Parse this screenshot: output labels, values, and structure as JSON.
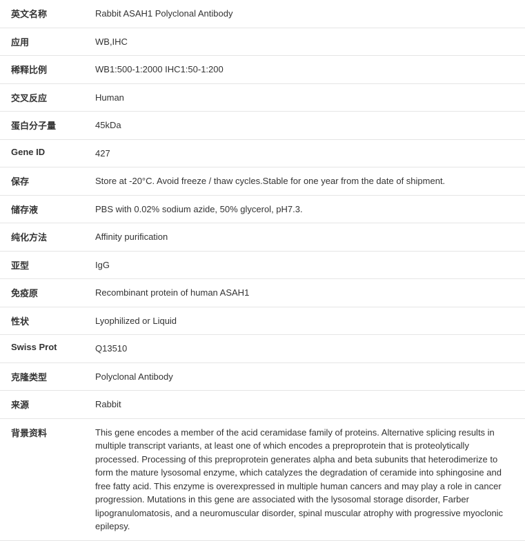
{
  "table": {
    "border_color": "#e5e5e5",
    "background_color": "#ffffff",
    "text_color": "#333333",
    "label_fontsize": 13,
    "value_fontsize": 13,
    "label_fontweight": "bold",
    "label_width": 130,
    "rows": [
      {
        "label": "英文名称",
        "value": "Rabbit ASAH1 Polyclonal Antibody"
      },
      {
        "label": "应用",
        "value": "WB,IHC"
      },
      {
        "label": "稀释比例",
        "value": "WB1:500-1:2000 IHC1:50-1:200"
      },
      {
        "label": "交叉反应",
        "value": "Human"
      },
      {
        "label": "蛋白分子量",
        "value": "45kDa"
      },
      {
        "label": "Gene ID",
        "value": "427"
      },
      {
        "label": "保存",
        "value": "Store at -20°C. Avoid freeze / thaw cycles.Stable for one year from the date of shipment."
      },
      {
        "label": "储存液",
        "value": "PBS with 0.02% sodium azide, 50% glycerol, pH7.3."
      },
      {
        "label": "纯化方法",
        "value": "Affinity purification"
      },
      {
        "label": "亚型",
        "value": "IgG"
      },
      {
        "label": "免疫原",
        "value": "Recombinant protein of human ASAH1"
      },
      {
        "label": "性状",
        "value": "Lyophilized or Liquid"
      },
      {
        "label": "Swiss Prot",
        "value": "Q13510"
      },
      {
        "label": "克隆类型",
        "value": "Polyclonal Antibody"
      },
      {
        "label": "来源",
        "value": "Rabbit"
      },
      {
        "label": "背景资料",
        "value": "This gene encodes a member of the acid ceramidase family of proteins. Alternative splicing results in multiple transcript variants, at least one of which encodes a preproprotein that is proteolytically processed. Processing of this preproprotein generates alpha and beta subunits that heterodimerize to form the mature lysosomal enzyme, which catalyzes the degradation of ceramide into sphingosine and free fatty acid. This enzyme is overexpressed in multiple human cancers and may play a role in cancer progression. Mutations in this gene are associated with the lysosomal storage disorder, Farber lipogranulomatosis, and a neuromuscular disorder, spinal muscular atrophy with progressive myoclonic epilepsy."
      }
    ]
  }
}
